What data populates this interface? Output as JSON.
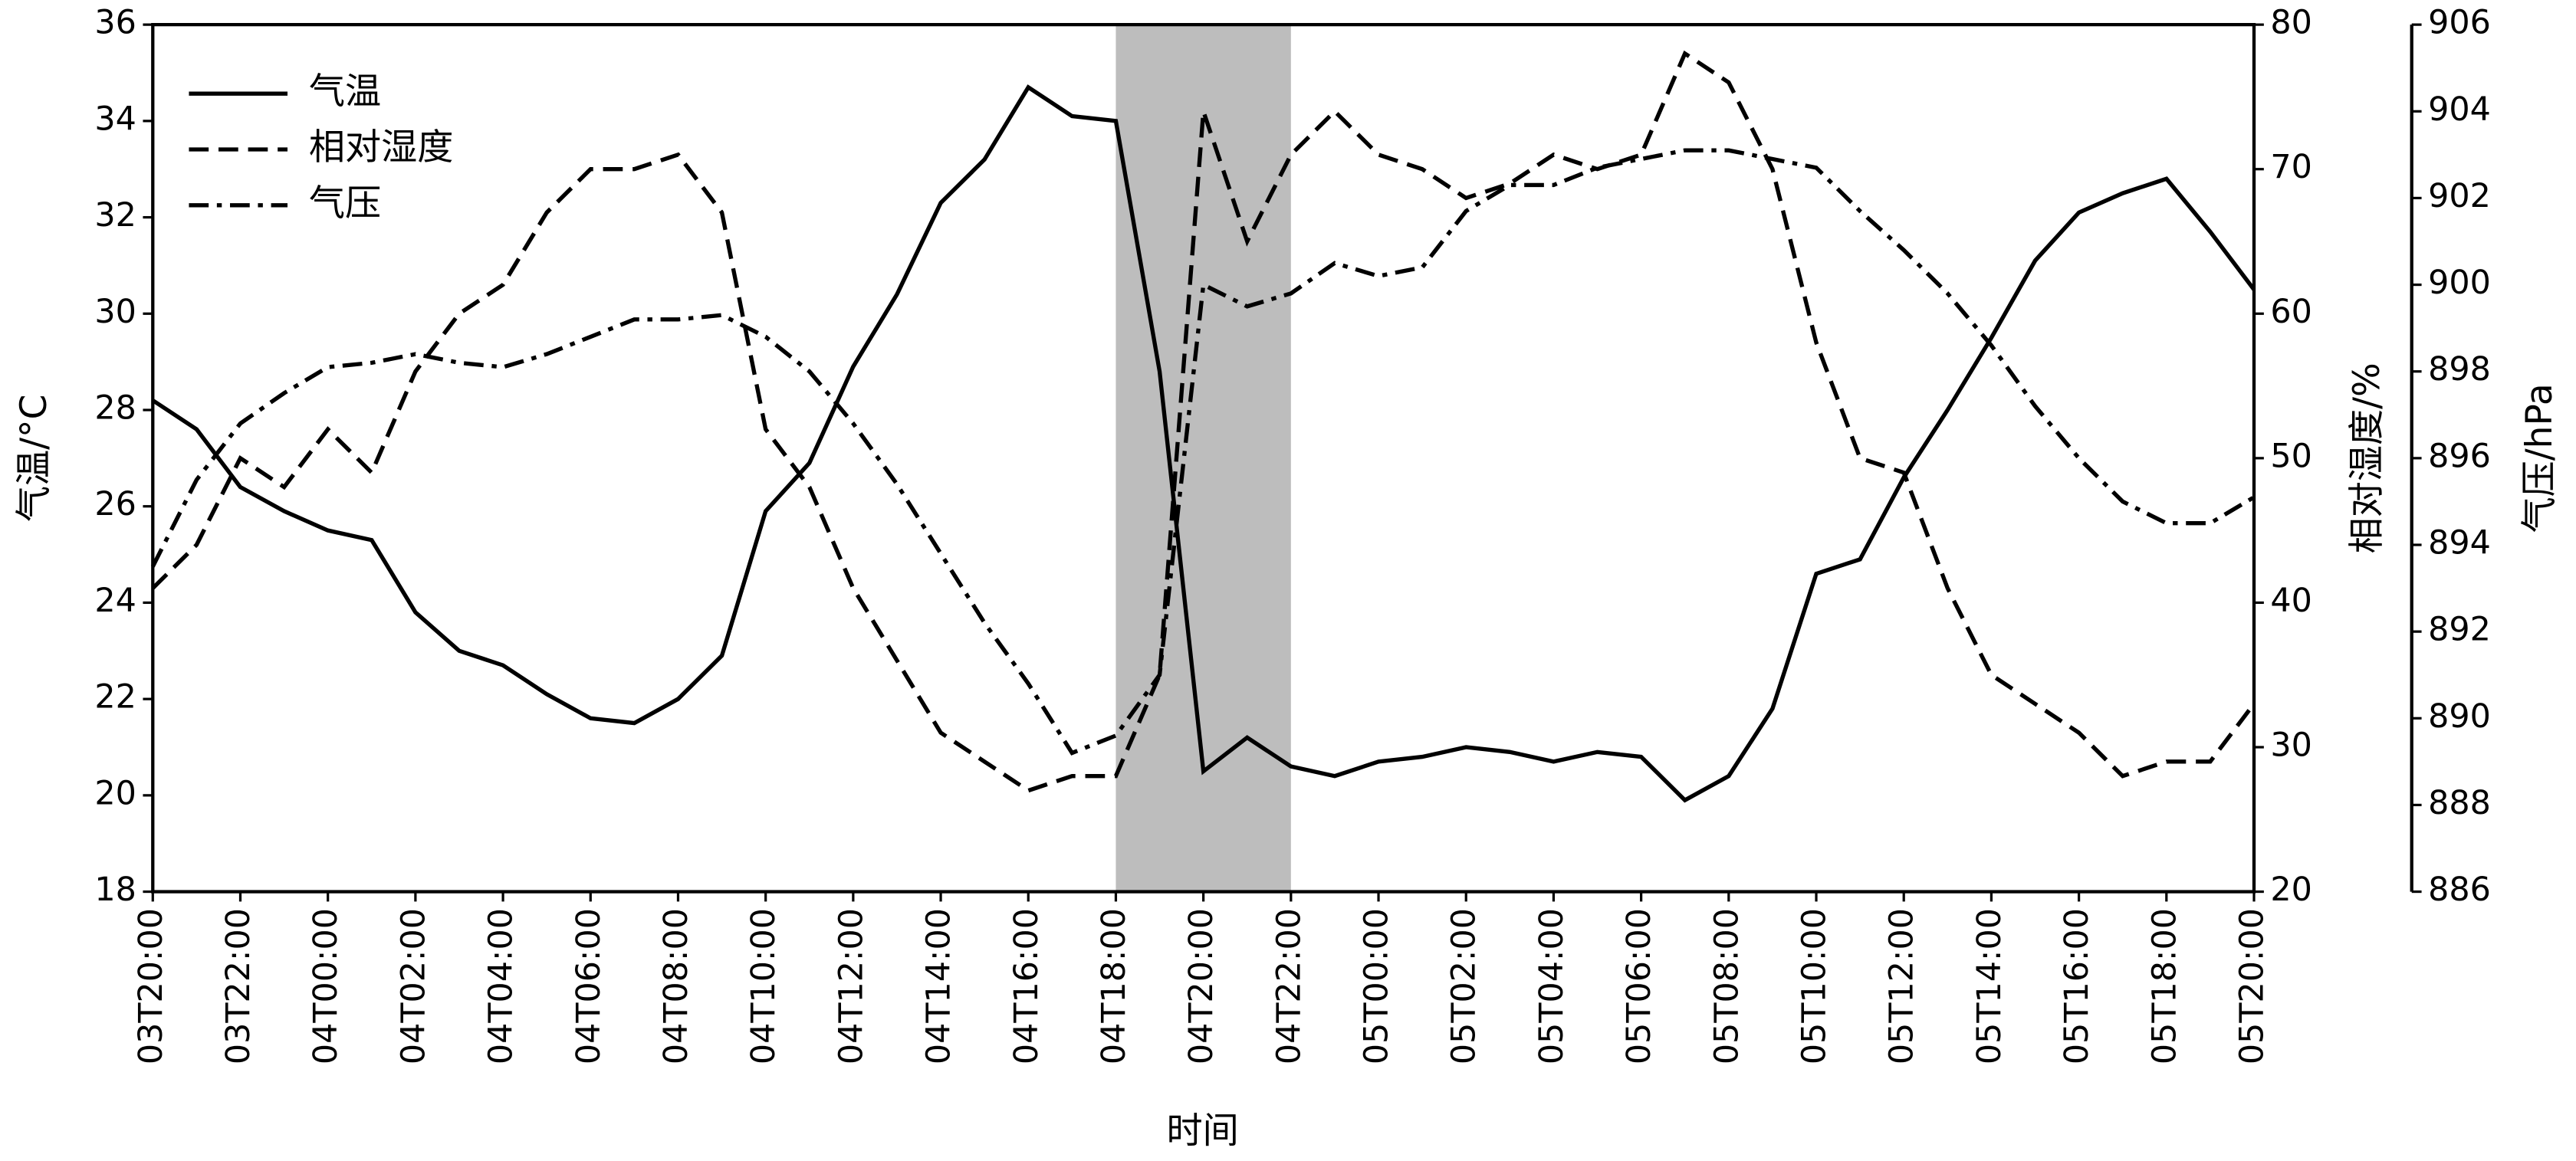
{
  "chart_data": {
    "type": "line",
    "xlabel": "时间",
    "ylabel": "气温/°C",
    "y2label": "相对湿度/%",
    "y3label": "气压/hPa",
    "categories": [
      "03T20:00",
      null,
      "03T22:00",
      null,
      "04T00:00",
      null,
      "04T02:00",
      null,
      "04T04:00",
      null,
      "04T06:00",
      null,
      "04T08:00",
      null,
      "04T10:00",
      null,
      "04T12:00",
      null,
      "04T14:00",
      null,
      "04T16:00",
      null,
      "04T18:00",
      null,
      "04T20:00",
      null,
      "04T22:00",
      null,
      "05T00:00",
      null,
      "05T02:00",
      null,
      "05T04:00",
      null,
      "05T06:00",
      null,
      "05T08:00",
      null,
      "05T10:00",
      null,
      "05T12:00",
      null,
      "05T14:00",
      null,
      "05T16:00",
      null,
      "05T18:00",
      null,
      "05T20:00"
    ],
    "shaded_span": [
      "04T18:00",
      "04T22:00"
    ],
    "shade_color": "#bdbdbd",
    "series": [
      {
        "name": "气温",
        "color": "#000000",
        "dash": "solid",
        "axis": "y",
        "values": [
          28.2,
          27.6,
          26.4,
          25.9,
          25.5,
          25.3,
          23.8,
          23.0,
          22.7,
          22.1,
          21.6,
          21.5,
          22.0,
          22.9,
          25.9,
          26.9,
          28.9,
          30.4,
          32.3,
          33.2,
          34.7,
          34.1,
          34.0,
          28.8,
          20.5,
          21.2,
          20.6,
          20.4,
          20.7,
          20.8,
          21.0,
          20.9,
          20.7,
          20.9,
          20.8,
          19.9,
          20.4,
          21.8,
          24.6,
          24.9,
          26.6,
          28.0,
          29.5,
          31.1,
          32.1,
          32.5,
          32.8,
          31.7,
          30.5
        ]
      },
      {
        "name": "相对湿度",
        "color": "#000000",
        "dash": "dashed",
        "axis": "y2",
        "values": [
          41,
          44,
          50,
          48,
          52,
          49,
          56,
          60,
          62,
          67,
          70,
          70,
          71,
          67,
          52,
          48,
          41,
          36,
          31,
          29,
          27,
          28,
          28,
          35,
          74,
          65,
          71,
          74,
          71,
          70,
          68,
          69,
          71,
          70,
          71,
          78,
          76,
          70,
          58,
          50,
          49,
          41,
          35,
          33,
          31,
          28,
          29,
          29,
          33
        ]
      },
      {
        "name": "气压",
        "color": "#000000",
        "dash": "dashdot",
        "axis": "y3",
        "values": [
          893.5,
          895.5,
          896.8,
          897.5,
          898.1,
          898.2,
          898.4,
          898.2,
          898.1,
          898.4,
          898.8,
          899.2,
          899.2,
          899.3,
          898.8,
          898.0,
          896.8,
          895.4,
          893.8,
          892.2,
          890.8,
          889.2,
          889.6,
          891.0,
          900.0,
          899.5,
          899.8,
          900.5,
          900.2,
          900.4,
          901.7,
          902.3,
          902.3,
          902.7,
          902.9,
          903.1,
          903.1,
          902.9,
          902.7,
          901.7,
          900.8,
          899.8,
          898.6,
          897.2,
          896.0,
          895.0,
          894.5,
          894.5,
          895.1
        ]
      }
    ],
    "ylim": [
      18,
      36
    ],
    "yticks": [
      18,
      20,
      22,
      24,
      26,
      28,
      30,
      32,
      34,
      36
    ],
    "y2lim": [
      20,
      80
    ],
    "y2ticks": [
      20,
      30,
      40,
      50,
      60,
      70,
      80
    ],
    "y3lim": [
      886,
      906
    ],
    "y3ticks": [
      886,
      888,
      890,
      892,
      894,
      896,
      898,
      900,
      902,
      904,
      906
    ],
    "legend": "upper left"
  }
}
